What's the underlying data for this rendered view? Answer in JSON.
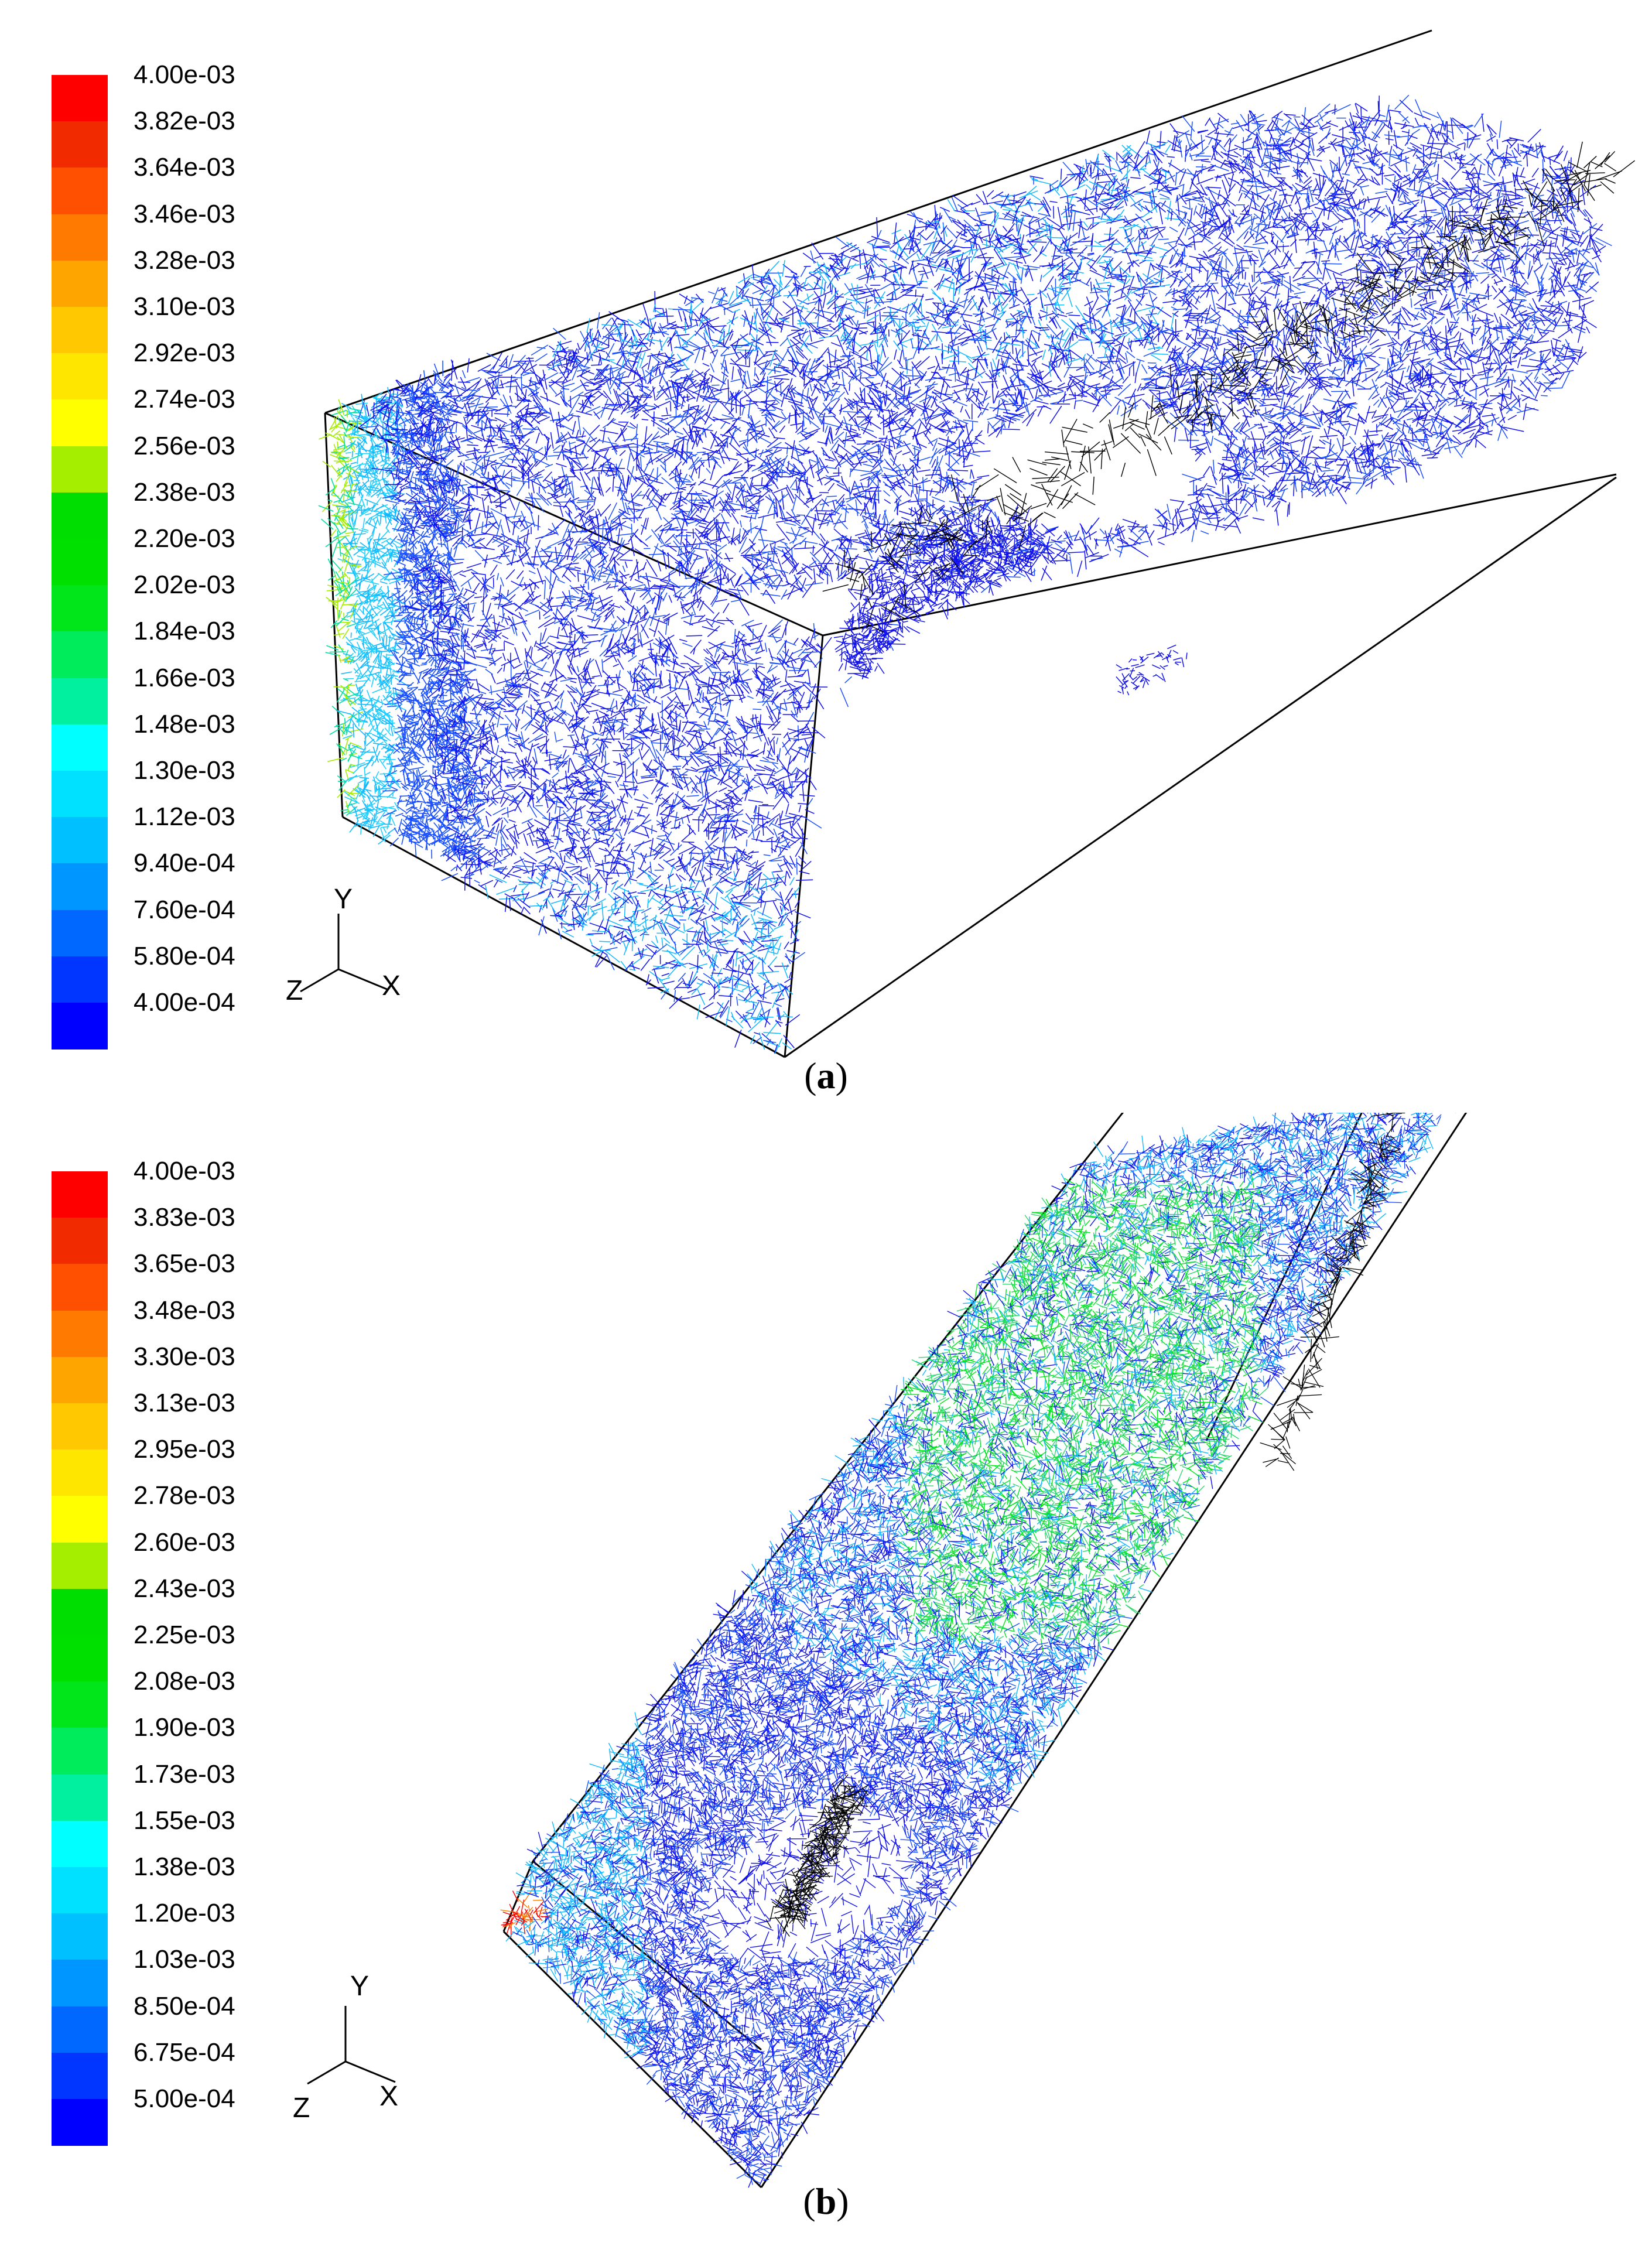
{
  "panels": [
    {
      "id": "a",
      "caption_label": "a",
      "colorbar_labels": [
        "4.00e-03",
        "3.82e-03",
        "3.64e-03",
        "3.46e-03",
        "3.28e-03",
        "3.10e-03",
        "2.92e-03",
        "2.74e-03",
        "2.56e-03",
        "2.38e-03",
        "2.20e-03",
        "2.02e-03",
        "1.84e-03",
        "1.66e-03",
        "1.48e-03",
        "1.30e-03",
        "1.12e-03",
        "9.40e-04",
        "7.60e-04",
        "5.80e-04",
        "4.00e-04"
      ],
      "axis_labels": {
        "y": "Y",
        "z": "Z",
        "x": "X"
      }
    },
    {
      "id": "b",
      "caption_label": "b",
      "colorbar_labels": [
        "4.00e-03",
        "3.83e-03",
        "3.65e-03",
        "3.48e-03",
        "3.30e-03",
        "3.13e-03",
        "2.95e-03",
        "2.78e-03",
        "2.60e-03",
        "2.43e-03",
        "2.25e-03",
        "2.08e-03",
        "1.90e-03",
        "1.73e-03",
        "1.55e-03",
        "1.38e-03",
        "1.20e-03",
        "1.03e-03",
        "8.50e-04",
        "6.75e-04",
        "5.00e-04"
      ],
      "axis_labels": {
        "y": "Y",
        "z": "Z",
        "x": "X"
      }
    }
  ],
  "colormap": [
    "#ff0000",
    "#f22a00",
    "#ff4f00",
    "#ff7a00",
    "#ffa500",
    "#ffc800",
    "#ffe600",
    "#ffff00",
    "#a5ee00",
    "#00dd00",
    "#00e000",
    "#00e61a",
    "#00ec5a",
    "#00f0a0",
    "#00ffff",
    "#00e0ff",
    "#00c0ff",
    "#0096ff",
    "#0068ff",
    "#0036ff",
    "#0000ff"
  ],
  "mesh_colors": {
    "wire_dark": "#1010ee",
    "wire_mid": "#1a50ff",
    "wire_cyan": "#10b8ff",
    "wire_green": "#30d870",
    "wire_black": "#000000"
  }
}
